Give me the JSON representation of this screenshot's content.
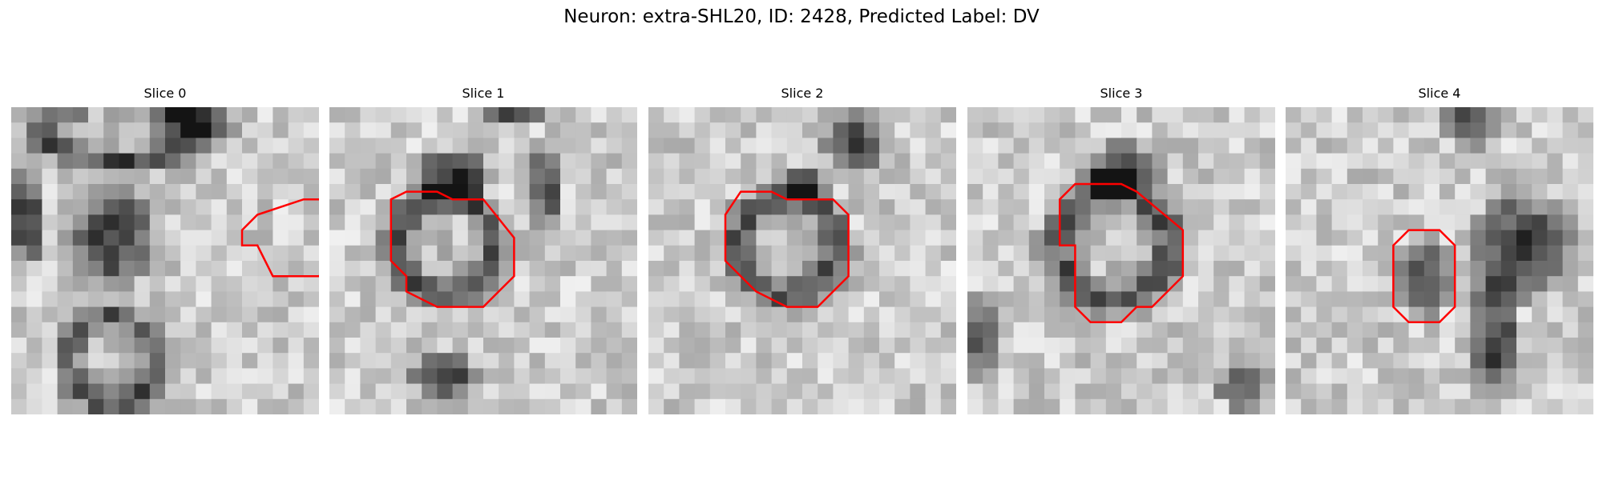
{
  "figure": {
    "title": "Neuron: extra-SHL20, ID: 2428, Predicted Label: DV"
  },
  "colors": {
    "contour": "#ff0000",
    "background": "#ffffff",
    "colormap": "gray"
  },
  "panels": [
    {
      "title": "Slice 0",
      "contour": [
        [
          19,
          6
        ],
        [
          22,
          6
        ],
        [
          22,
          9
        ],
        [
          20,
          11
        ],
        [
          17,
          11
        ],
        [
          16,
          9
        ],
        [
          15,
          9
        ],
        [
          15,
          8
        ],
        [
          16,
          7
        ]
      ],
      "dark_blobs": [
        {
          "cx": 7,
          "cy": 1.5,
          "rx": 6,
          "ry": 2.5,
          "ring": true
        },
        {
          "cx": 12,
          "cy": 1,
          "rx": 3,
          "ry": 1.5,
          "ring": false
        },
        {
          "cx": 6.5,
          "cy": 8.5,
          "rx": 3.5,
          "ry": 4,
          "ring": false
        },
        {
          "cx": 6.5,
          "cy": 16.5,
          "rx": 3.5,
          "ry": 3.5,
          "ring": true
        },
        {
          "cx": 1,
          "cy": 7,
          "rx": 1.5,
          "ry": 4,
          "ring": false
        }
      ]
    },
    {
      "title": "Slice 1",
      "contour": [
        [
          5,
          5.5
        ],
        [
          7,
          5.5
        ],
        [
          8,
          6
        ],
        [
          10,
          6
        ],
        [
          12,
          8.5
        ],
        [
          12,
          11
        ],
        [
          11,
          12
        ],
        [
          10,
          13
        ],
        [
          7,
          13
        ],
        [
          6,
          12.5
        ],
        [
          5,
          12
        ],
        [
          5,
          11
        ],
        [
          4,
          10
        ],
        [
          4,
          6
        ]
      ],
      "dark_blobs": [
        {
          "cx": 7.5,
          "cy": 9,
          "rx": 4,
          "ry": 4,
          "ring": true
        },
        {
          "cx": 8,
          "cy": 4.5,
          "rx": 3,
          "ry": 2,
          "ring": false
        },
        {
          "cx": 7.5,
          "cy": 17.5,
          "rx": 2.5,
          "ry": 2,
          "ring": false
        },
        {
          "cx": 14,
          "cy": 5,
          "rx": 1.5,
          "ry": 3,
          "ring": false
        },
        {
          "cx": 12,
          "cy": 0.5,
          "rx": 2,
          "ry": 1,
          "ring": false
        }
      ]
    },
    {
      "title": "Slice 2",
      "contour": [
        [
          6,
          5.5
        ],
        [
          8,
          5.5
        ],
        [
          9,
          6
        ],
        [
          12,
          6
        ],
        [
          13,
          7
        ],
        [
          13,
          11
        ],
        [
          12,
          12
        ],
        [
          11,
          13
        ],
        [
          9,
          13
        ],
        [
          8,
          12.5
        ],
        [
          7,
          12
        ],
        [
          6,
          11
        ],
        [
          5,
          10
        ],
        [
          5,
          7
        ]
      ],
      "dark_blobs": [
        {
          "cx": 9,
          "cy": 9,
          "rx": 4,
          "ry": 4,
          "ring": true
        },
        {
          "cx": 13.5,
          "cy": 2.5,
          "rx": 2.5,
          "ry": 2.5,
          "ring": false
        },
        {
          "cx": 10,
          "cy": 5,
          "rx": 2,
          "ry": 1.5,
          "ring": false
        }
      ]
    },
    {
      "title": "Slice 3",
      "contour": [
        [
          7,
          5
        ],
        [
          10,
          5
        ],
        [
          11,
          5.5
        ],
        [
          14,
          8
        ],
        [
          14,
          11
        ],
        [
          12,
          13
        ],
        [
          11,
          13
        ],
        [
          10,
          14
        ],
        [
          8,
          14
        ],
        [
          7,
          13
        ],
        [
          7,
          9
        ],
        [
          6,
          9
        ],
        [
          6,
          6
        ]
      ],
      "dark_blobs": [
        {
          "cx": 9.5,
          "cy": 9,
          "rx": 4.5,
          "ry": 4.5,
          "ring": true
        },
        {
          "cx": 10,
          "cy": 4,
          "rx": 3,
          "ry": 2,
          "ring": false
        },
        {
          "cx": 18,
          "cy": 18,
          "rx": 2,
          "ry": 2,
          "ring": false
        },
        {
          "cx": 1,
          "cy": 15,
          "rx": 1.5,
          "ry": 3,
          "ring": false
        }
      ]
    },
    {
      "title": "Slice 4",
      "contour": [
        [
          8,
          8
        ],
        [
          10,
          8
        ],
        [
          11,
          9
        ],
        [
          11,
          13
        ],
        [
          10,
          14
        ],
        [
          8,
          14
        ],
        [
          7,
          13
        ],
        [
          7,
          9
        ]
      ],
      "dark_blobs": [
        {
          "cx": 9,
          "cy": 11,
          "rx": 2.5,
          "ry": 3,
          "ring": false
        },
        {
          "cx": 15.5,
          "cy": 9,
          "rx": 4,
          "ry": 4,
          "ring": false
        },
        {
          "cx": 13.5,
          "cy": 15,
          "rx": 2,
          "ry": 5,
          "ring": false
        },
        {
          "cx": 12,
          "cy": 1,
          "rx": 2,
          "ry": 2,
          "ring": false
        }
      ]
    }
  ]
}
